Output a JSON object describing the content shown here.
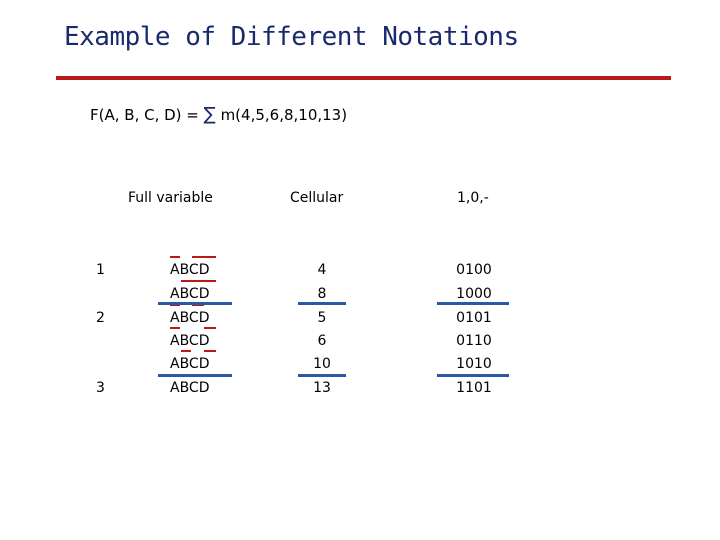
{
  "title": "Example of Different Notations",
  "formula": {
    "lhs": "F(A, B, C, D) =",
    "sum_symbol": "∑",
    "rhs": "m(4,5,6,8,10,13)"
  },
  "table": {
    "headers": [
      "Full variable",
      "Cellular",
      "1,0,-"
    ],
    "group_numbers": [
      "1",
      "2",
      "3"
    ],
    "rows": [
      {
        "full": "ABCD",
        "cell": "4",
        "bin": "0100"
      },
      {
        "full": "ABCD",
        "cell": "8",
        "bin": "1000"
      },
      {
        "full": "ABCD",
        "cell": "5",
        "bin": "0101"
      },
      {
        "full": "ABCD",
        "cell": "6",
        "bin": "0110"
      },
      {
        "full": "ABCD",
        "cell": "10",
        "bin": "1010"
      },
      {
        "full": "ABCD",
        "cell": "13",
        "bin": "1101"
      }
    ]
  },
  "colors": {
    "title": "#1a2a6e",
    "rule": "#b81a1a",
    "complement_bar": "#b81a1a",
    "group_separator": "#2b57a8"
  }
}
